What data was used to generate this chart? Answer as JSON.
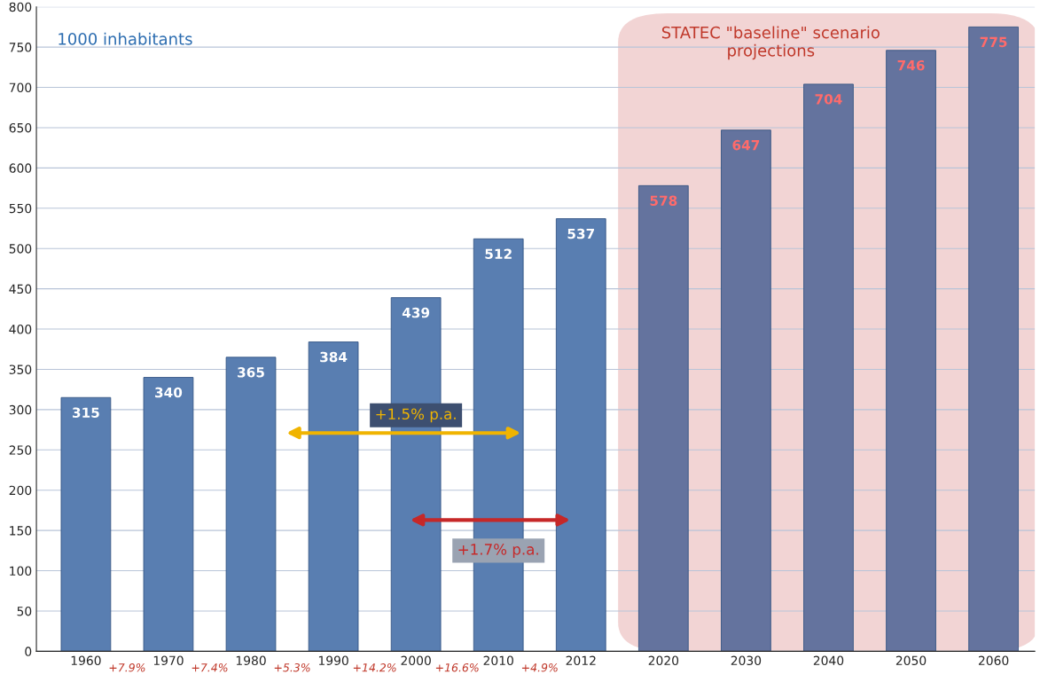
{
  "chart_data": {
    "type": "bar",
    "categories": [
      "1960",
      "1970",
      "1980",
      "1990",
      "2000",
      "2010",
      "2012",
      "2020",
      "2030",
      "2040",
      "2050",
      "2060"
    ],
    "values": [
      315,
      340,
      365,
      384,
      439,
      512,
      537,
      578,
      647,
      704,
      746,
      775
    ],
    "colors": [
      "#4a7cc0",
      "#4a7cc0",
      "#4a7cc0",
      "#4a7cc0",
      "#4a7cc0",
      "#4a7cc0",
      "#4a7cc0",
      "#5a6ea8",
      "#5a6ea8",
      "#5a6ea8",
      "#5a6ea8",
      "#5a6ea8"
    ],
    "data_labels": true,
    "ylim": [
      0,
      800
    ],
    "yticks": [
      0,
      50,
      100,
      150,
      200,
      250,
      300,
      350,
      400,
      450,
      500,
      550,
      600,
      650,
      700,
      750,
      800
    ],
    "grid": "y",
    "legend": false,
    "bands": [
      {
        "axis": "x",
        "from": "2020",
        "to": "2060",
        "label": "STATEC \"baseline\" scenario\nprojections",
        "color": "#f2d4d4"
      }
    ],
    "annotations": [
      "1000 inhabitants",
      "+7.9%",
      "+7.4%",
      "+5.3%",
      "+14.2%",
      "+16.6%",
      "+4.9%",
      "+1.5% p.a.",
      "+1.7% p.a."
    ]
  }
}
